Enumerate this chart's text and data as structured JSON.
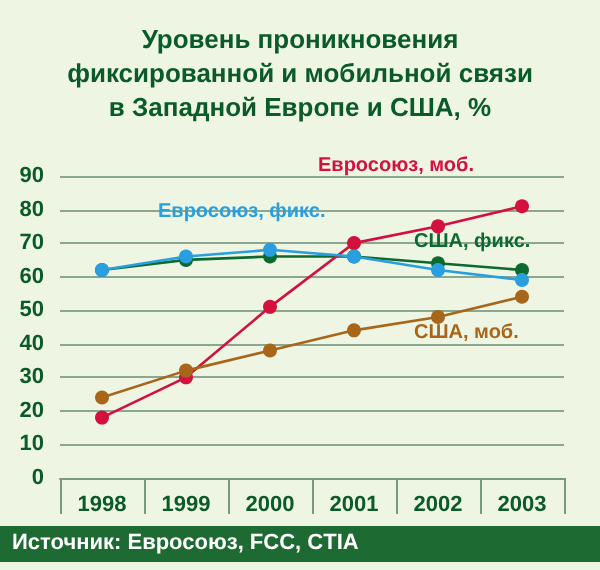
{
  "chart_data": {
    "type": "line",
    "title": "Уровень проникновения\nфиксированной и мобильной связи\nв Западной Европе и США, %",
    "categories": [
      "1998",
      "1999",
      "2000",
      "2001",
      "2002",
      "2003"
    ],
    "series": [
      {
        "name": "Евросоюз, фикс.",
        "color": "#2a9fe0",
        "values": [
          62,
          66,
          68,
          66,
          62,
          59
        ]
      },
      {
        "name": "США, фикс.",
        "color": "#0b6a2f",
        "values": [
          62,
          65,
          66,
          66,
          64,
          62
        ]
      },
      {
        "name": "Евросоюз, моб.",
        "color": "#d4103c",
        "values": [
          18,
          30,
          51,
          70,
          75,
          81
        ]
      },
      {
        "name": "США, моб.",
        "color": "#a8661a",
        "values": [
          24,
          32,
          38,
          44,
          48,
          54
        ]
      }
    ],
    "ylim": [
      0,
      90
    ],
    "yticks": [
      0,
      10,
      20,
      30,
      40,
      50,
      60,
      70,
      80,
      90
    ],
    "grid": "y",
    "legend": false,
    "marker": "circle",
    "line_style": "solid",
    "annotations": [
      "Источник: Евросоюз, FCC, CTIA"
    ]
  }
}
